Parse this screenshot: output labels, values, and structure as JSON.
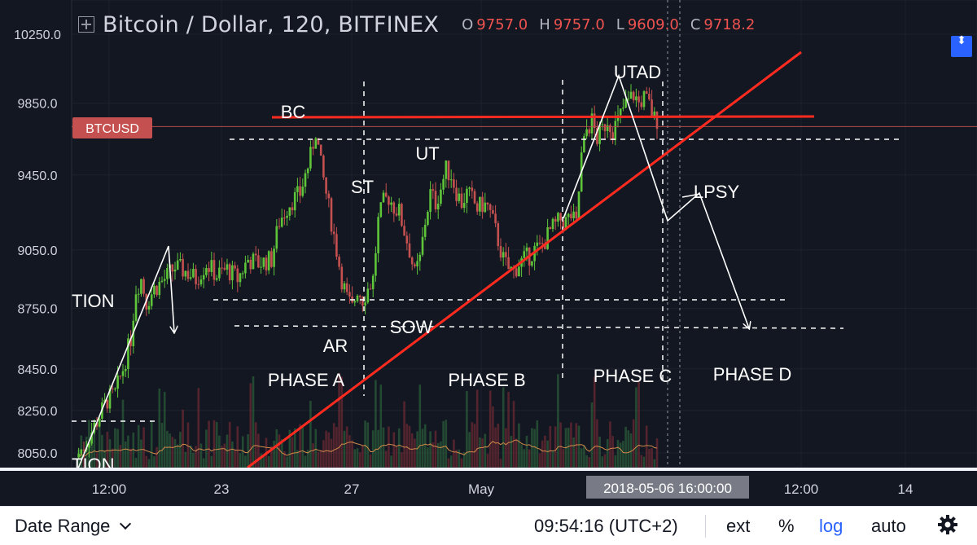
{
  "header": {
    "title": "Bitcoin / Dollar, 120, BITFINEX",
    "ohlc": [
      {
        "key": "O",
        "value": "9757.0"
      },
      {
        "key": "H",
        "value": "9757.0"
      },
      {
        "key": "L",
        "value": "9609.0"
      },
      {
        "key": "C",
        "value": "9718.2"
      }
    ]
  },
  "price_tag": "BTCUSD",
  "crosshair_label": "2018-05-06  16:00:00",
  "bottom_bar": {
    "date_range": "Date Range",
    "clock": "09:54:16 (UTC+2)",
    "ext": "ext",
    "percent": "%",
    "log": "log",
    "auto": "auto"
  },
  "colors": {
    "background": "#131722",
    "up": "#5ec53a",
    "down": "#c4504f",
    "trendline": "#ff2b20",
    "accent": "#2962ff"
  },
  "chart_data": {
    "type": "candlestick",
    "title": "Bitcoin / Dollar, 120, BITFINEX",
    "scale": "log",
    "grid": true,
    "y_ticks": [
      10250,
      9850,
      9450,
      9050,
      8750,
      8450,
      8250,
      8050
    ],
    "y_tick_labels": [
      "10250.0",
      "9850.0",
      "9450.0",
      "9050.0",
      "8750.0",
      "8450.0",
      "8250.0",
      "8050.0"
    ],
    "x_tick_labels": [
      "12:00",
      "23",
      "27",
      "May",
      "12:00",
      "14"
    ],
    "current_price": 9718.2,
    "path": [
      [
        0,
        8030
      ],
      [
        4,
        8100
      ],
      [
        8,
        8200
      ],
      [
        12,
        8300
      ],
      [
        15,
        8330
      ],
      [
        18,
        8450
      ],
      [
        21,
        8600
      ],
      [
        23,
        8850
      ],
      [
        25,
        8900
      ],
      [
        27,
        8780
      ],
      [
        30,
        8850
      ],
      [
        34,
        8900
      ],
      [
        38,
        8960
      ],
      [
        42,
        8940
      ],
      [
        46,
        8900
      ],
      [
        50,
        8980
      ],
      [
        54,
        8920
      ],
      [
        58,
        8950
      ],
      [
        62,
        8900
      ],
      [
        66,
        9000
      ],
      [
        70,
        8980
      ],
      [
        75,
        9000
      ],
      [
        78,
        9200
      ],
      [
        82,
        9300
      ],
      [
        86,
        9350
      ],
      [
        88,
        9450
      ],
      [
        90,
        9550
      ],
      [
        92,
        9700
      ],
      [
        94,
        9500
      ],
      [
        96,
        9350
      ],
      [
        98,
        9200
      ],
      [
        100,
        9050
      ],
      [
        102,
        8900
      ],
      [
        104,
        8800
      ],
      [
        106,
        8750
      ],
      [
        108,
        8850
      ],
      [
        110,
        8800
      ],
      [
        112,
        8850
      ],
      [
        114,
        8900
      ],
      [
        116,
        9200
      ],
      [
        118,
        9300
      ],
      [
        120,
        9330
      ],
      [
        122,
        9280
      ],
      [
        124,
        9250
      ],
      [
        126,
        9150
      ],
      [
        128,
        9050
      ],
      [
        130,
        8920
      ],
      [
        132,
        9000
      ],
      [
        134,
        9200
      ],
      [
        136,
        9350
      ],
      [
        138,
        9300
      ],
      [
        140,
        9380
      ],
      [
        142,
        9480
      ],
      [
        144,
        9450
      ],
      [
        146,
        9360
      ],
      [
        148,
        9300
      ],
      [
        150,
        9350
      ],
      [
        152,
        9320
      ],
      [
        154,
        9270
      ],
      [
        156,
        9290
      ],
      [
        158,
        9280
      ],
      [
        160,
        9200
      ],
      [
        162,
        9100
      ],
      [
        164,
        9000
      ],
      [
        166,
        8950
      ],
      [
        168,
        8940
      ],
      [
        170,
        8980
      ],
      [
        172,
        9000
      ],
      [
        174,
        9020
      ],
      [
        176,
        9050
      ],
      [
        178,
        9060
      ],
      [
        180,
        9100
      ],
      [
        182,
        9150
      ],
      [
        184,
        9180
      ],
      [
        186,
        9210
      ],
      [
        188,
        9200
      ],
      [
        190,
        9230
      ],
      [
        192,
        9180
      ],
      [
        194,
        9550
      ],
      [
        196,
        9700
      ],
      [
        198,
        9750
      ],
      [
        200,
        9650
      ],
      [
        202,
        9700
      ],
      [
        204,
        9760
      ],
      [
        206,
        9700
      ],
      [
        208,
        9750
      ],
      [
        210,
        9820
      ],
      [
        212,
        9860
      ],
      [
        214,
        9900
      ],
      [
        216,
        9850
      ],
      [
        218,
        9880
      ],
      [
        220,
        9840
      ],
      [
        222,
        9760
      ]
    ],
    "volume_range": [
      0,
      1
    ],
    "annotations": [
      "BC",
      "ST",
      "UT",
      "AR",
      "SOW",
      "UTAD",
      "LPSY",
      "TION",
      "TION",
      "PHASE A",
      "PHASE B",
      "PHASE C",
      "PHASE D"
    ]
  }
}
